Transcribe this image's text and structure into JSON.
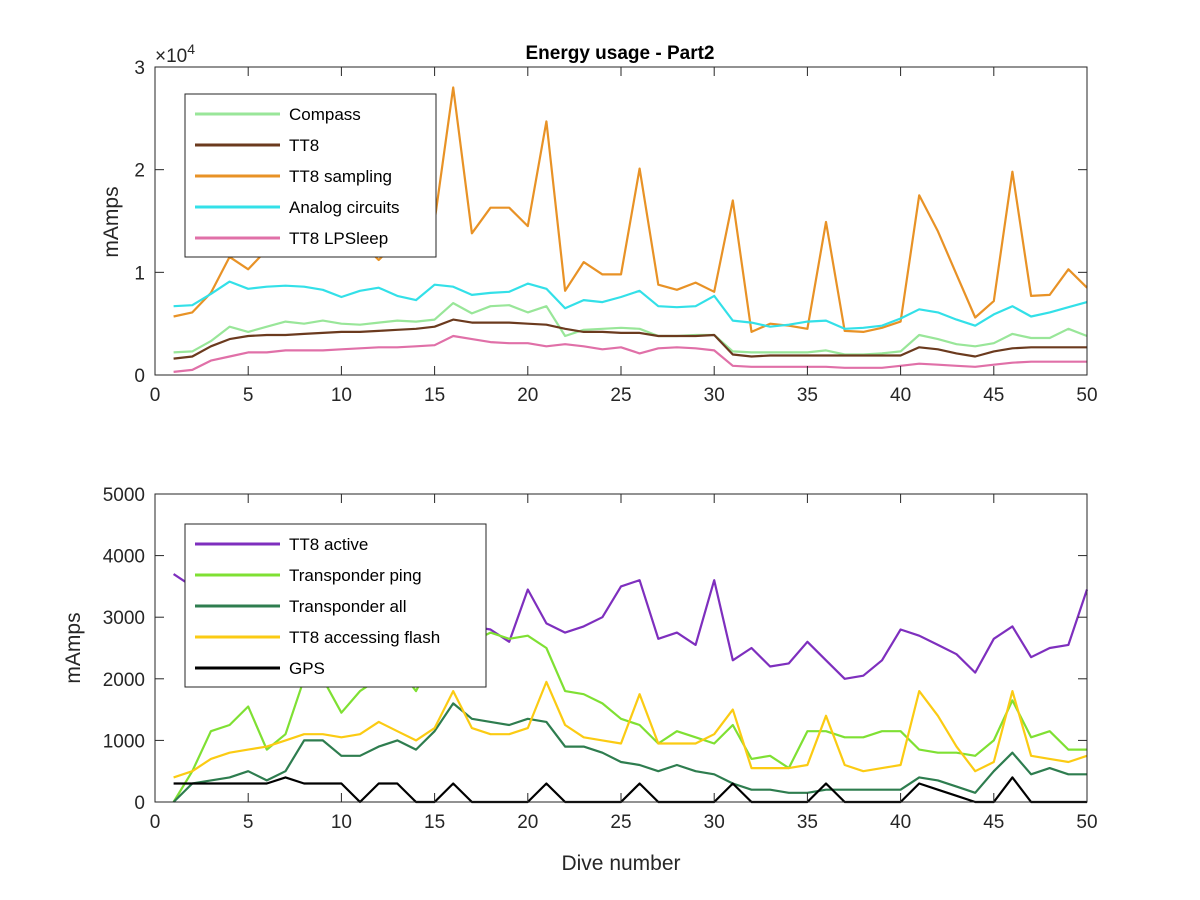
{
  "chart_data": [
    {
      "type": "line",
      "title": "Energy usage - Part2",
      "xlabel": "",
      "ylabel": "mAmps",
      "xlim": [
        0,
        50
      ],
      "ylim": [
        0,
        30000
      ],
      "xticks": [
        0,
        5,
        10,
        15,
        20,
        25,
        30,
        35,
        40,
        45,
        50
      ],
      "yticks": [
        0,
        10000,
        20000,
        30000
      ],
      "ytick_labels": [
        "0",
        "1",
        "2",
        "3"
      ],
      "y_exponent_label": "×10",
      "y_exponent_power": "4",
      "grid": false,
      "legend_position": "top-left",
      "x": [
        1,
        2,
        3,
        4,
        5,
        6,
        7,
        8,
        9,
        10,
        11,
        12,
        13,
        14,
        15,
        16,
        17,
        18,
        19,
        20,
        21,
        22,
        23,
        24,
        25,
        26,
        27,
        28,
        29,
        30,
        31,
        32,
        33,
        34,
        35,
        36,
        37,
        38,
        39,
        40,
        41,
        42,
        43,
        44,
        45,
        46,
        47,
        48,
        49,
        50
      ],
      "series": [
        {
          "name": "Compass",
          "color": "#99e699",
          "values": [
            2200,
            2300,
            3300,
            4700,
            4200,
            4700,
            5200,
            5000,
            5300,
            5000,
            4900,
            5100,
            5300,
            5200,
            5400,
            7000,
            6000,
            6700,
            6800,
            6100,
            6700,
            3800,
            4400,
            4500,
            4600,
            4500,
            3800,
            3800,
            3900,
            3900,
            2300,
            2200,
            2200,
            2200,
            2200,
            2400,
            2000,
            2000,
            2100,
            2300,
            3900,
            3500,
            3000,
            2800,
            3100,
            4000,
            3600,
            3600,
            4500,
            3800
          ]
        },
        {
          "name": "TT8",
          "color": "#6b3a1e",
          "values": [
            1600,
            1800,
            2800,
            3500,
            3800,
            3900,
            3900,
            4000,
            4100,
            4200,
            4200,
            4300,
            4400,
            4500,
            4700,
            5400,
            5100,
            5100,
            5100,
            5000,
            4900,
            4500,
            4200,
            4200,
            4100,
            4100,
            3800,
            3800,
            3800,
            3900,
            2000,
            1800,
            1900,
            1900,
            1900,
            1900,
            1900,
            1900,
            1900,
            1900,
            2700,
            2500,
            2100,
            1800,
            2300,
            2600,
            2700,
            2700,
            2700,
            2700
          ]
        },
        {
          "name": "TT8 sampling",
          "color": "#e89226",
          "values": [
            5700,
            6100,
            8000,
            11500,
            10300,
            12200,
            14000,
            15500,
            16500,
            14500,
            13000,
            11200,
            13000,
            12500,
            15000,
            28000,
            13800,
            16300,
            16300,
            14500,
            24700,
            8200,
            11000,
            9800,
            9800,
            20100,
            8800,
            8300,
            9000,
            8100,
            17000,
            4200,
            5000,
            4800,
            4500,
            14900,
            4300,
            4200,
            4600,
            5200,
            17500,
            14000,
            9800,
            5600,
            7200,
            19800,
            7700,
            7800,
            10300,
            8500
          ]
        },
        {
          "name": "Analog circuits",
          "color": "#33e0e8",
          "values": [
            6700,
            6800,
            7900,
            9100,
            8400,
            8600,
            8700,
            8600,
            8300,
            7600,
            8200,
            8500,
            7700,
            7300,
            8800,
            8600,
            7800,
            8000,
            8100,
            8900,
            8400,
            6500,
            7300,
            7100,
            7600,
            8200,
            6700,
            6600,
            6700,
            7700,
            5300,
            5100,
            4700,
            4900,
            5200,
            5300,
            4500,
            4600,
            4800,
            5500,
            6400,
            6100,
            5400,
            4800,
            5900,
            6700,
            5700,
            6100,
            6600,
            7100
          ]
        },
        {
          "name": "TT8 LPSleep",
          "color": "#e070a8",
          "values": [
            300,
            500,
            1400,
            1800,
            2200,
            2200,
            2400,
            2400,
            2400,
            2500,
            2600,
            2700,
            2700,
            2800,
            2900,
            3800,
            3500,
            3200,
            3100,
            3100,
            2800,
            3000,
            2800,
            2500,
            2700,
            2100,
            2600,
            2700,
            2600,
            2400,
            900,
            800,
            800,
            800,
            800,
            800,
            700,
            700,
            700,
            900,
            1100,
            1000,
            900,
            800,
            1000,
            1200,
            1300,
            1300,
            1300,
            1300
          ]
        }
      ]
    },
    {
      "type": "line",
      "title": "",
      "xlabel": "Dive number",
      "ylabel": "mAmps",
      "xlim": [
        0,
        50
      ],
      "ylim": [
        0,
        5000
      ],
      "xticks": [
        0,
        5,
        10,
        15,
        20,
        25,
        30,
        35,
        40,
        45,
        50
      ],
      "yticks": [
        0,
        1000,
        2000,
        3000,
        4000,
        5000
      ],
      "ytick_labels": [
        "0",
        "1000",
        "2000",
        "3000",
        "4000",
        "5000"
      ],
      "grid": false,
      "legend_position": "top-left",
      "x": [
        1,
        2,
        3,
        4,
        5,
        6,
        7,
        8,
        9,
        10,
        11,
        12,
        13,
        14,
        15,
        16,
        17,
        18,
        19,
        20,
        21,
        22,
        23,
        24,
        25,
        26,
        27,
        28,
        29,
        30,
        31,
        32,
        33,
        34,
        35,
        36,
        37,
        38,
        39,
        40,
        41,
        42,
        43,
        44,
        45,
        46,
        47,
        48,
        49,
        50
      ],
      "series": [
        {
          "name": "TT8 active",
          "color": "#7e2fbe",
          "values": [
            3700,
            3500,
            3500,
            3450,
            3450,
            3400,
            3350,
            3300,
            3250,
            3200,
            3150,
            3100,
            3050,
            3000,
            2950,
            2900,
            2850,
            2800,
            2600,
            3450,
            2900,
            2750,
            2850,
            3000,
            3500,
            3600,
            2650,
            2750,
            2550,
            3600,
            2300,
            2500,
            2200,
            2250,
            2600,
            2300,
            2000,
            2050,
            2300,
            2800,
            2700,
            2550,
            2400,
            2100,
            2650,
            2850,
            2350,
            2500,
            2550,
            3450
          ]
        },
        {
          "name": "Transponder ping",
          "color": "#7fe033",
          "values": [
            0,
            500,
            1150,
            1250,
            1550,
            850,
            1100,
            2000,
            2000,
            1450,
            1800,
            2000,
            2200,
            1800,
            2400,
            2600,
            2600,
            2750,
            2650,
            2700,
            2500,
            1800,
            1750,
            1600,
            1350,
            1250,
            950,
            1150,
            1050,
            950,
            1250,
            700,
            750,
            550,
            1150,
            1150,
            1050,
            1050,
            1150,
            1150,
            850,
            800,
            800,
            750,
            1000,
            1650,
            1050,
            1150,
            850,
            850
          ]
        },
        {
          "name": "Transponder all",
          "color": "#2e7d4f",
          "values": [
            0,
            300,
            350,
            400,
            500,
            350,
            500,
            1000,
            1000,
            750,
            750,
            900,
            1000,
            850,
            1150,
            1600,
            1350,
            1300,
            1250,
            1350,
            1300,
            900,
            900,
            800,
            650,
            600,
            500,
            600,
            500,
            450,
            300,
            200,
            200,
            150,
            150,
            200,
            200,
            200,
            200,
            200,
            400,
            350,
            250,
            150,
            500,
            800,
            450,
            550,
            450,
            450
          ]
        },
        {
          "name": "TT8 accessing flash",
          "color": "#fbcb13",
          "values": [
            400,
            500,
            700,
            800,
            850,
            900,
            1000,
            1100,
            1100,
            1050,
            1100,
            1300,
            1150,
            1000,
            1200,
            1800,
            1200,
            1100,
            1100,
            1200,
            1950,
            1250,
            1050,
            1000,
            950,
            1750,
            950,
            950,
            950,
            1100,
            1500,
            550,
            550,
            550,
            600,
            1400,
            600,
            500,
            550,
            600,
            1800,
            1400,
            900,
            500,
            650,
            1800,
            750,
            700,
            650,
            750
          ]
        },
        {
          "name": "GPS",
          "color": "#000000",
          "values": [
            300,
            300,
            300,
            300,
            300,
            300,
            400,
            300,
            300,
            300,
            0,
            300,
            300,
            0,
            0,
            300,
            0,
            0,
            0,
            0,
            300,
            0,
            0,
            0,
            0,
            300,
            0,
            0,
            0,
            0,
            300,
            0,
            0,
            0,
            0,
            300,
            0,
            0,
            0,
            0,
            300,
            200,
            100,
            0,
            0,
            400,
            0,
            0,
            0,
            0
          ]
        }
      ]
    }
  ]
}
